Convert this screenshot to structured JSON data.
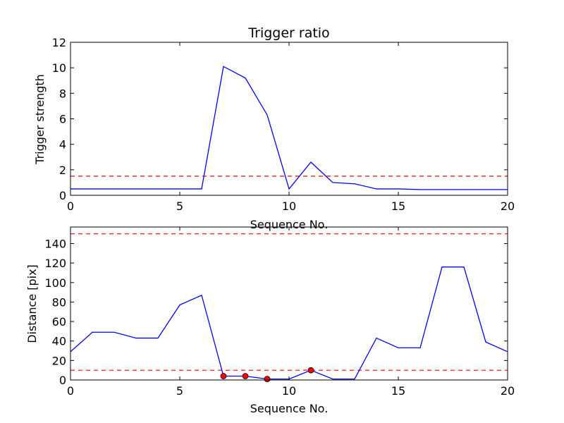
{
  "colors": {
    "series_line": "#0000ff",
    "threshold_line": "#ff0000",
    "marker_fill": "#ff0000",
    "marker_edge": "#000000",
    "axes": "#000000",
    "background": "#ffffff"
  },
  "chart_data": [
    {
      "type": "line",
      "title": "Trigger ratio",
      "xlabel": "Sequence No.",
      "ylabel": "Trigger strength",
      "xlim": [
        0,
        20
      ],
      "ylim": [
        0,
        12
      ],
      "xticks": [
        "0",
        "5",
        "10",
        "15",
        "20"
      ],
      "yticks": [
        "0",
        "2",
        "4",
        "6",
        "8",
        "10",
        "12"
      ],
      "grid": false,
      "legend": "none",
      "series": [
        {
          "x": [
            0,
            1,
            2,
            3,
            4,
            5,
            6,
            7,
            8,
            9,
            10,
            11,
            12,
            13,
            14,
            15,
            16,
            17,
            18,
            19,
            20
          ],
          "values": [
            0.5,
            0.5,
            0.5,
            0.5,
            0.5,
            0.5,
            0.5,
            10.1,
            9.2,
            6.3,
            0.5,
            2.6,
            1.0,
            0.9,
            0.5,
            0.5,
            0.45,
            0.45,
            0.45,
            0.45,
            0.45
          ],
          "style": "solid",
          "color": "#0000ff"
        }
      ],
      "hlines": [
        {
          "y": 1.5,
          "style": "dashed",
          "color": "#ff0000"
        }
      ]
    },
    {
      "type": "line",
      "title": "",
      "xlabel": "Sequence No.",
      "ylabel": "Distance [pix]",
      "xlim": [
        0,
        20
      ],
      "ylim": [
        0,
        157
      ],
      "xticks": [
        "0",
        "5",
        "10",
        "15",
        "20"
      ],
      "yticks": [
        "0",
        "20",
        "40",
        "60",
        "80",
        "100",
        "120",
        "140"
      ],
      "grid": false,
      "legend": "none",
      "series": [
        {
          "x": [
            0,
            1,
            2,
            3,
            4,
            5,
            6,
            7,
            8,
            9,
            10,
            11,
            12,
            13,
            14,
            15,
            16,
            17,
            18,
            19,
            20
          ],
          "values": [
            29,
            49,
            49,
            43,
            43,
            77,
            87,
            4,
            4,
            1,
            1,
            10,
            1,
            1,
            43,
            33,
            33,
            116,
            116,
            39,
            29
          ],
          "style": "solid",
          "color": "#0000ff"
        }
      ],
      "markers": {
        "x": [
          7,
          8,
          9,
          11
        ],
        "y": [
          4,
          4,
          1,
          10
        ]
      },
      "hlines": [
        {
          "y": 10,
          "style": "dashed",
          "color": "#ff0000"
        },
        {
          "y": 150,
          "style": "dashed",
          "color": "#ff0000"
        }
      ]
    }
  ]
}
